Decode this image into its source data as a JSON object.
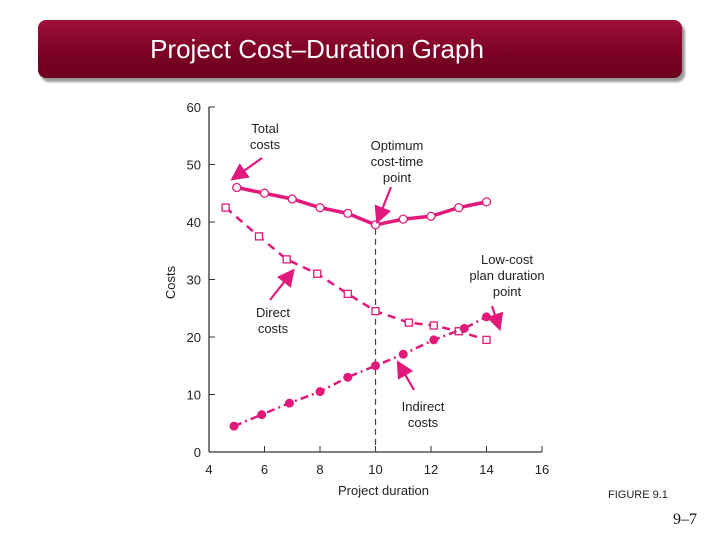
{
  "slide": {
    "title": "Project Cost–Duration Graph",
    "figure_label": "FIGURE 9.1",
    "page_number": "9–7"
  },
  "colors": {
    "title_bg": "#7d0027",
    "series": "#e0197a",
    "axis": "#333333",
    "arrow": "#e0197a"
  },
  "chart_data": {
    "type": "line",
    "title": "",
    "xlabel": "Project duration",
    "ylabel": "Costs",
    "xlim": [
      4,
      16
    ],
    "ylim": [
      0,
      60
    ],
    "xticks": [
      4,
      6,
      8,
      10,
      12,
      14,
      16
    ],
    "yticks": [
      0,
      10,
      20,
      30,
      40,
      50,
      60
    ],
    "grid": false,
    "series": [
      {
        "name": "Total costs",
        "marker": "open-circle",
        "line": "solid",
        "x": [
          5,
          6,
          7,
          8,
          9,
          10,
          11,
          12,
          13,
          14
        ],
        "y": [
          46,
          45,
          44,
          42.5,
          41.5,
          39.5,
          40.5,
          41,
          42.5,
          43.5
        ]
      },
      {
        "name": "Direct costs",
        "marker": "open-square",
        "line": "dashed",
        "x": [
          4.6,
          5.8,
          6.8,
          7.9,
          9,
          10,
          11.2,
          12.1,
          13,
          14
        ],
        "y": [
          42.5,
          37.5,
          33.5,
          31,
          27.5,
          24.5,
          22.5,
          22,
          21,
          19.5
        ]
      },
      {
        "name": "Indirect costs",
        "marker": "filled-circle",
        "line": "dash-dot",
        "x": [
          4.9,
          5.9,
          6.9,
          8,
          9,
          10,
          11,
          12.1,
          13.2,
          14
        ],
        "y": [
          4.5,
          6.5,
          8.5,
          10.5,
          13,
          15,
          17,
          19.5,
          21.5,
          23.5
        ]
      }
    ],
    "optimum_line_x": 10,
    "annotations": [
      {
        "text": [
          "Total",
          "costs"
        ]
      },
      {
        "text": [
          "Optimum",
          "cost-time",
          "point"
        ]
      },
      {
        "text": [
          "Low-cost",
          "plan duration",
          "point"
        ]
      },
      {
        "text": [
          "Direct",
          "costs"
        ]
      },
      {
        "text": [
          "Indirect",
          "costs"
        ]
      }
    ]
  }
}
